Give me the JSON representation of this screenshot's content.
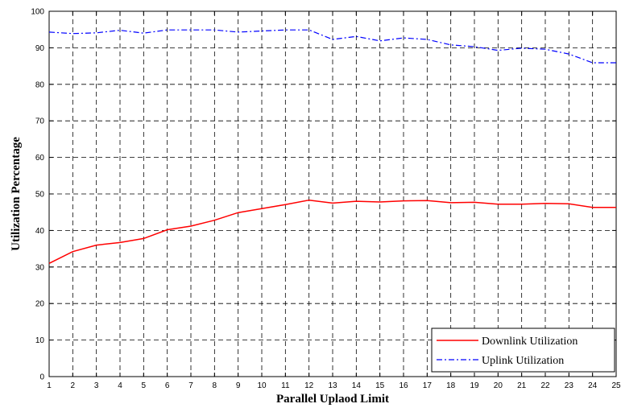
{
  "chart_data": {
    "type": "line",
    "title": "",
    "xlabel": "Parallel Uplaod Limit",
    "ylabel": "Utilization Percentage",
    "xlim": [
      1,
      25
    ],
    "ylim": [
      0,
      100
    ],
    "x_ticks": [
      1,
      2,
      3,
      4,
      5,
      6,
      7,
      8,
      9,
      10,
      11,
      12,
      13,
      14,
      15,
      16,
      17,
      18,
      19,
      20,
      21,
      22,
      23,
      24,
      25
    ],
    "y_ticks": [
      0,
      10,
      20,
      30,
      40,
      50,
      60,
      70,
      80,
      90,
      100
    ],
    "grid": true,
    "legend_position": "bottom-right",
    "x": [
      1,
      2,
      3,
      4,
      5,
      6,
      7,
      8,
      9,
      10,
      11,
      12,
      13,
      14,
      15,
      16,
      17,
      18,
      19,
      20,
      21,
      22,
      23,
      24,
      25
    ],
    "series": [
      {
        "name": "Downlink Utilization",
        "color": "#ff0000",
        "line_style": "solid",
        "values": [
          31.0,
          34.2,
          36.0,
          36.7,
          37.8,
          40.2,
          41.2,
          42.8,
          44.9,
          46.0,
          47.1,
          48.3,
          47.5,
          48.0,
          47.8,
          48.1,
          48.2,
          47.6,
          47.7,
          47.2,
          47.2,
          47.4,
          47.3,
          46.3,
          46.3
        ]
      },
      {
        "name": "Uplink Utilization",
        "color": "#0000ff",
        "line_style": "dash-dot",
        "values": [
          94.3,
          93.9,
          94.1,
          94.8,
          94.0,
          94.9,
          94.9,
          94.9,
          94.3,
          94.6,
          94.9,
          94.9,
          92.3,
          93.1,
          91.9,
          92.7,
          92.3,
          90.8,
          90.3,
          89.3,
          89.9,
          89.6,
          88.3,
          85.9,
          85.9
        ]
      }
    ]
  }
}
